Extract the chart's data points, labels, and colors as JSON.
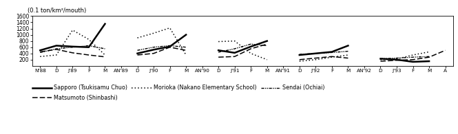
{
  "ylabel": "(0.1 ton/km²/mouth)",
  "ylim": [
    0,
    1600
  ],
  "yticks": [
    200,
    400,
    600,
    800,
    1000,
    1200,
    1400,
    1600
  ],
  "xtick_labels": [
    "N'88",
    "D",
    "J'89",
    "F",
    "M",
    "AN'89",
    "D",
    "J'90",
    "F",
    "M",
    "AN'90",
    "D",
    "J'91",
    "F",
    "M",
    "AN'91",
    "D",
    "J'92",
    "F",
    "M",
    "AN'92",
    "D",
    "J'93",
    "F",
    "M",
    "A"
  ],
  "sapporo": [
    500,
    650,
    620,
    600,
    1350,
    null,
    400,
    520,
    620,
    1000,
    null,
    500,
    420,
    620,
    800,
    null,
    350,
    400,
    450,
    650,
    null,
    230,
    200,
    130,
    150,
    null
  ],
  "morioka": [
    300,
    350,
    1150,
    850,
    350,
    null,
    900,
    1050,
    1220,
    350,
    null,
    780,
    800,
    400,
    200,
    null,
    150,
    200,
    280,
    350,
    null,
    200,
    220,
    350,
    450,
    null
  ],
  "sendai": [
    430,
    550,
    600,
    650,
    550,
    null,
    500,
    600,
    650,
    600,
    null,
    440,
    550,
    700,
    650,
    null,
    370,
    400,
    430,
    470,
    null,
    230,
    250,
    280,
    300,
    null
  ],
  "matsumoto": [
    450,
    530,
    420,
    350,
    290,
    null,
    350,
    400,
    600,
    500,
    null,
    280,
    300,
    550,
    700,
    null,
    200,
    250,
    300,
    250,
    null,
    150,
    180,
    200,
    280,
    500
  ],
  "legend_row1": [
    {
      "label": "Sapporo (Tsukisamu Chuo)",
      "ls": "solid",
      "lw": 1.8
    },
    {
      "label": "Morioka (Nakano Elementary School)",
      "ls": "dotted",
      "lw": 1.2
    },
    {
      "label": "Sendai (Ochiai)",
      "ls": "dashdot",
      "lw": 1.0
    }
  ],
  "legend_row2": [
    {
      "label": "Matsumoto (Shinbashi)",
      "ls": "dashed",
      "lw": 1.2
    }
  ],
  "background_color": "#ffffff",
  "line_color": "#000000"
}
